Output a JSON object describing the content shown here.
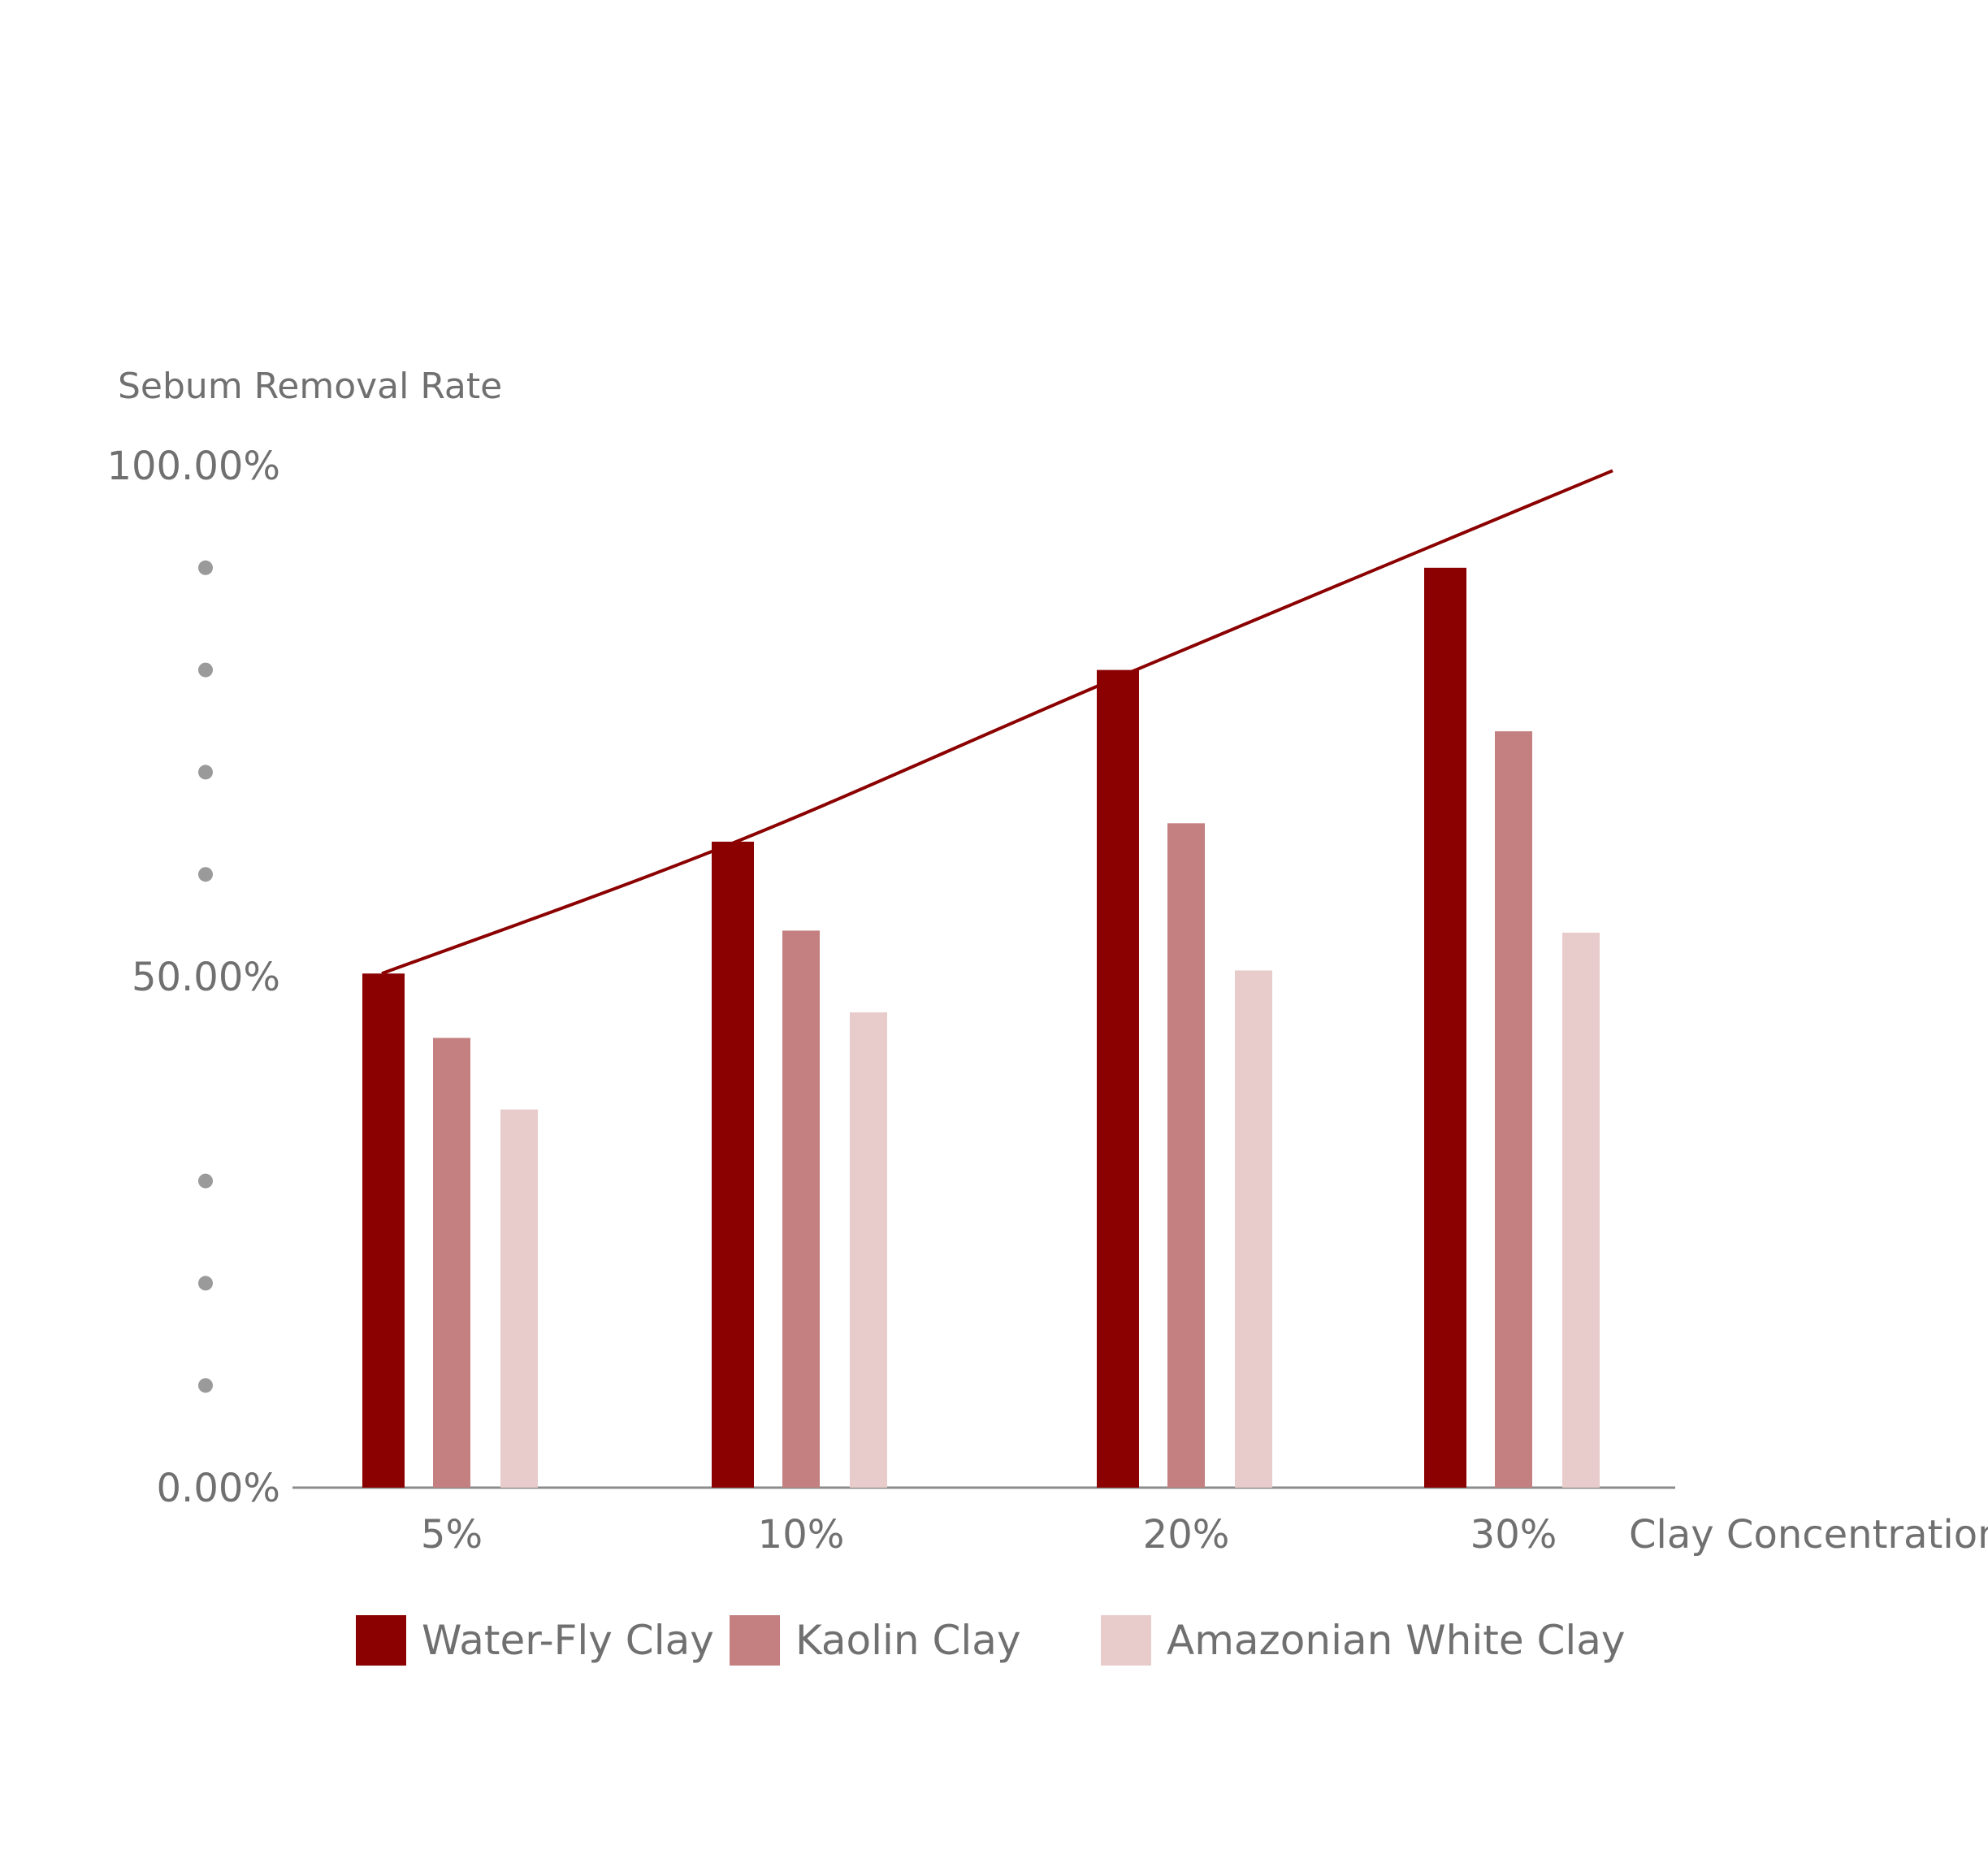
{
  "chart_data": {
    "type": "bar",
    "ylabel": "Sebum Removal Rate",
    "xlabel": "Clay Concentration",
    "ylim": [
      0,
      100
    ],
    "y_tick_labels": [
      "0.00%",
      "50.00%",
      "100.00%"
    ],
    "y_tick_values": [
      0,
      50,
      100
    ],
    "minor_tick_dots": [
      10,
      20,
      30,
      60,
      70,
      80,
      90
    ],
    "categories": [
      "5%",
      "10%",
      "20%",
      "30%"
    ],
    "series": [
      {
        "name": "Water-Fly Clay",
        "color": "#8b0000",
        "values": [
          50.3,
          63.2,
          80.0,
          90.0
        ]
      },
      {
        "name": "Kaolin Clay",
        "color": "#c48080",
        "values": [
          44.0,
          54.5,
          65.0,
          74.0
        ]
      },
      {
        "name": "Amazonian White Clay",
        "color": "#e8cccc",
        "values": [
          37.0,
          46.5,
          50.6,
          54.3
        ]
      }
    ],
    "trend_line": {
      "color": "#8b0000",
      "values": [
        50.3,
        63.0,
        79.4,
        99.5
      ]
    },
    "grid": false,
    "legend_position": "bottom"
  }
}
